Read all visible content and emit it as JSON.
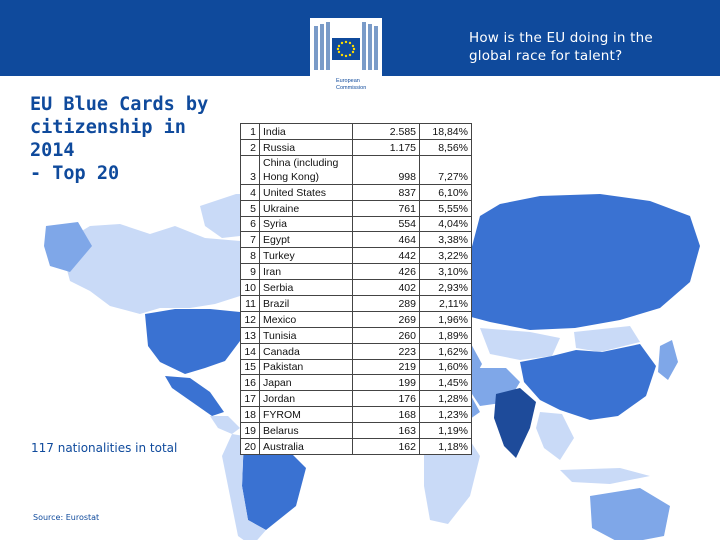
{
  "header": {
    "title_line1": "How is the EU doing in the",
    "title_line2": "global race for talent?",
    "logo": {
      "text_line1": "European",
      "text_line2": "Commission",
      "icon": "eu-flag-logo-icon"
    },
    "color": "#0f4a9c"
  },
  "slide": {
    "title_line1": "EU Blue Cards by",
    "title_line2": "citizenship in 2014",
    "title_line3": "- Top 20",
    "nationalities_note": "117 nationalities in total",
    "source": "Source: Eurostat"
  },
  "colors": {
    "dark": "#1e4b9a",
    "medium": "#3a72d2",
    "light": "#7fa7e8",
    "pale": "#c9daf7",
    "map_background": "#ffffff"
  },
  "table": {
    "rows": [
      {
        "rank": "1",
        "country": "India",
        "count": "2.585",
        "pct": "18,84%"
      },
      {
        "rank": "2",
        "country": "Russia",
        "count": "1.175",
        "pct": "8,56%"
      },
      {
        "rank": "3",
        "country_line1": "China (including",
        "country_line2": "Hong Kong)",
        "count": "998",
        "pct": "7,27%"
      },
      {
        "rank": "4",
        "country": "United States",
        "count": "837",
        "pct": "6,10%"
      },
      {
        "rank": "5",
        "country": "Ukraine",
        "count": "761",
        "pct": "5,55%"
      },
      {
        "rank": "6",
        "country": "Syria",
        "count": "554",
        "pct": "4,04%"
      },
      {
        "rank": "7",
        "country": "Egypt",
        "count": "464",
        "pct": "3,38%"
      },
      {
        "rank": "8",
        "country": "Turkey",
        "count": "442",
        "pct": "3,22%"
      },
      {
        "rank": "9",
        "country": "Iran",
        "count": "426",
        "pct": "3,10%"
      },
      {
        "rank": "10",
        "country": "Serbia",
        "count": "402",
        "pct": "2,93%"
      },
      {
        "rank": "11",
        "country": "Brazil",
        "count": "289",
        "pct": "2,11%"
      },
      {
        "rank": "12",
        "country": "Mexico",
        "count": "269",
        "pct": "1,96%"
      },
      {
        "rank": "13",
        "country": "Tunisia",
        "count": "260",
        "pct": "1,89%"
      },
      {
        "rank": "14",
        "country": "Canada",
        "count": "223",
        "pct": "1,62%"
      },
      {
        "rank": "15",
        "country": "Pakistan",
        "count": "219",
        "pct": "1,60%"
      },
      {
        "rank": "16",
        "country": "Japan",
        "count": "199",
        "pct": "1,45%"
      },
      {
        "rank": "17",
        "country": "Jordan",
        "count": "176",
        "pct": "1,28%"
      },
      {
        "rank": "18",
        "country": "FYROM",
        "count": "168",
        "pct": "1,23%"
      },
      {
        "rank": "19",
        "country": "Belarus",
        "count": "163",
        "pct": "1,19%"
      },
      {
        "rank": "20",
        "country": "Australia",
        "count": "162",
        "pct": "1,18%"
      }
    ]
  }
}
